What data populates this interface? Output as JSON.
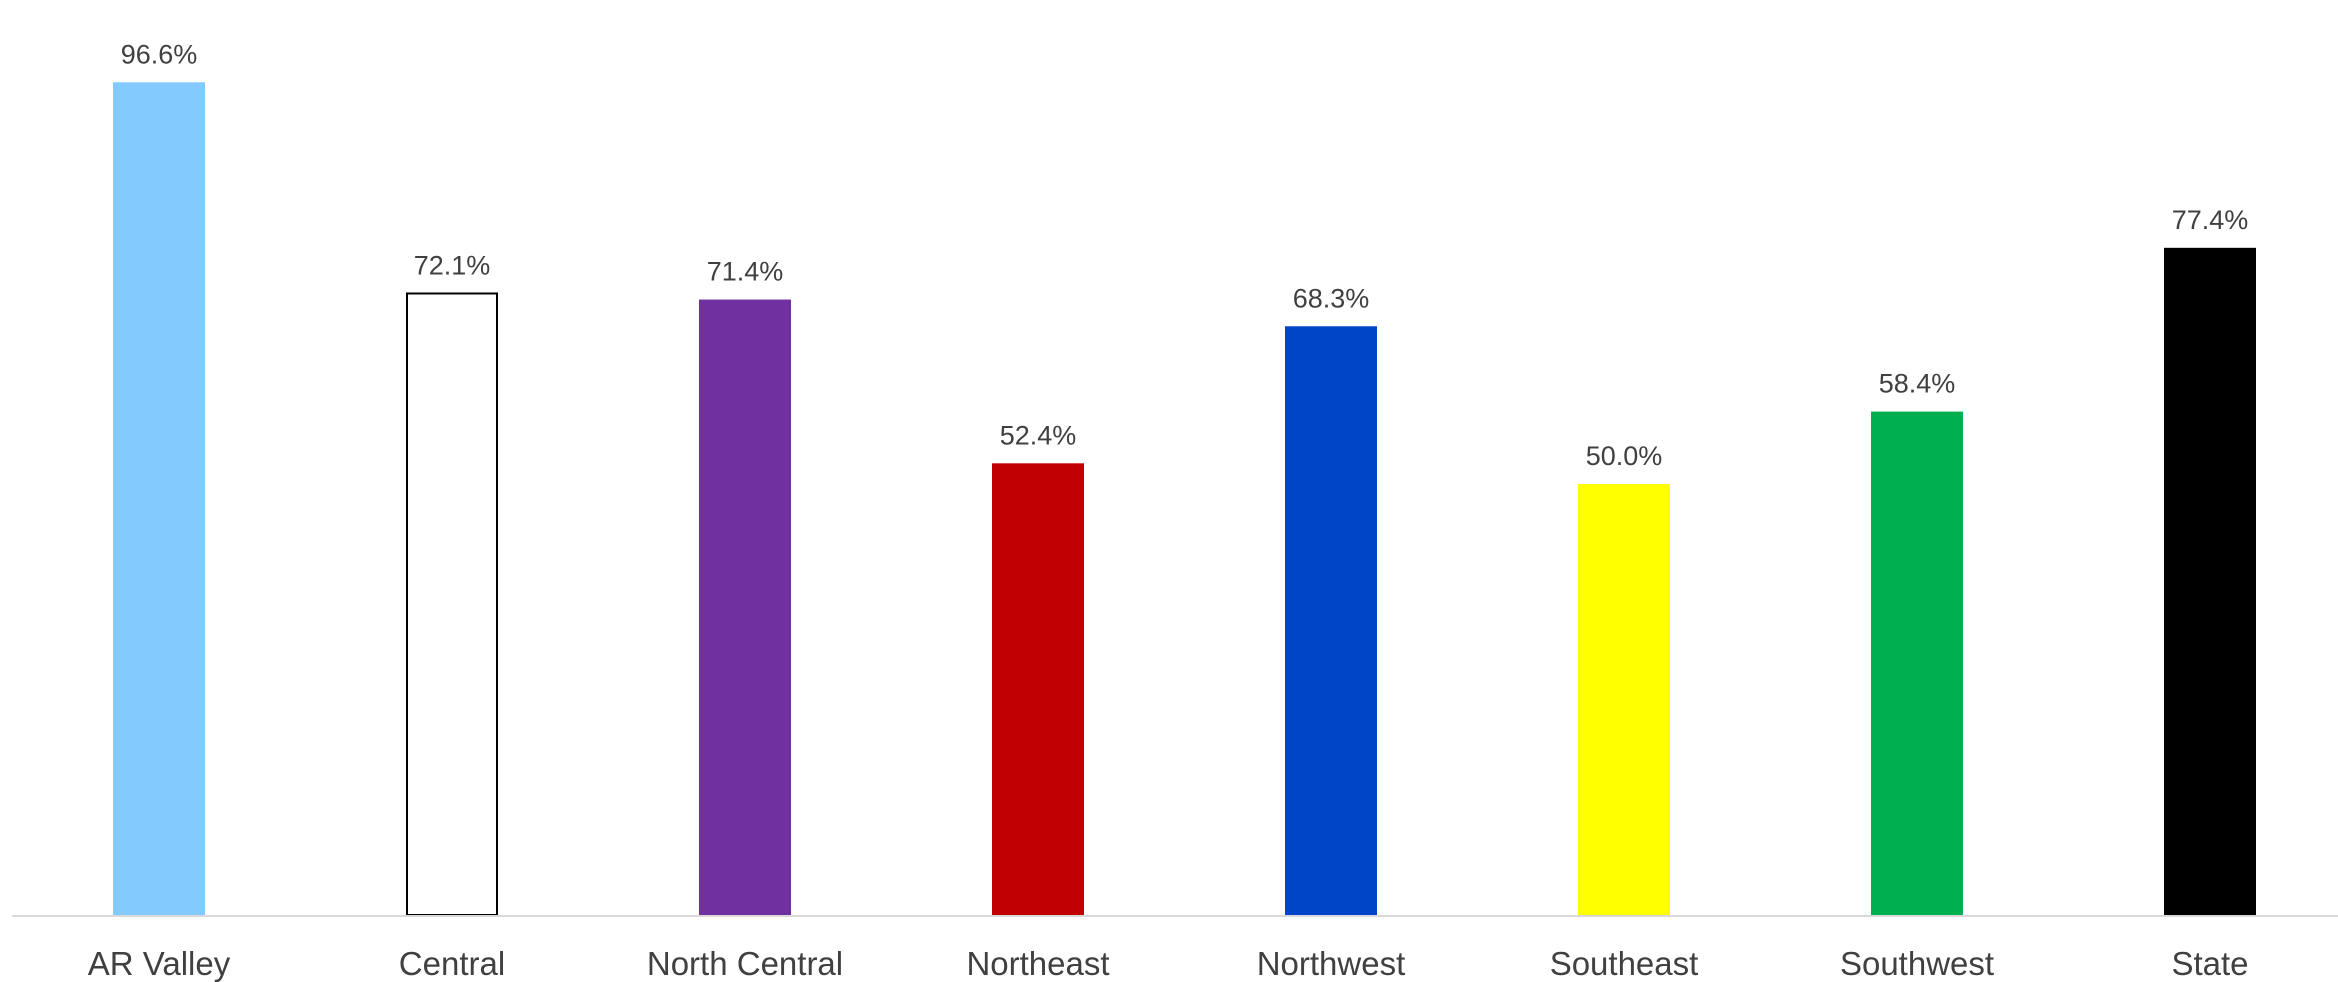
{
  "chart_data": {
    "type": "bar",
    "title": "",
    "xlabel": "",
    "ylabel": "",
    "ylim": [
      0,
      100
    ],
    "grid": false,
    "legend": "none",
    "categories": [
      "AR Valley",
      "Central",
      "North Central",
      "Northeast",
      "Northwest",
      "Southeast",
      "Southwest",
      "State"
    ],
    "values": [
      96.6,
      72.1,
      71.4,
      52.4,
      68.3,
      50.0,
      58.4,
      77.4
    ],
    "value_labels": [
      "96.6%",
      "72.1%",
      "71.4%",
      "52.4%",
      "68.3%",
      "50.0%",
      "58.4%",
      "77.4%"
    ],
    "colors": [
      "#82CAFF",
      "#FFFFFF",
      "#7030A0",
      "#C00000",
      "#0045C8",
      "#FFFF00",
      "#00B050",
      "#000000"
    ],
    "outlined": [
      false,
      true,
      false,
      false,
      false,
      false,
      false,
      false
    ],
    "outline_color": "#000000",
    "axis_color": "#D9D9D9",
    "text_color": "#404040"
  }
}
